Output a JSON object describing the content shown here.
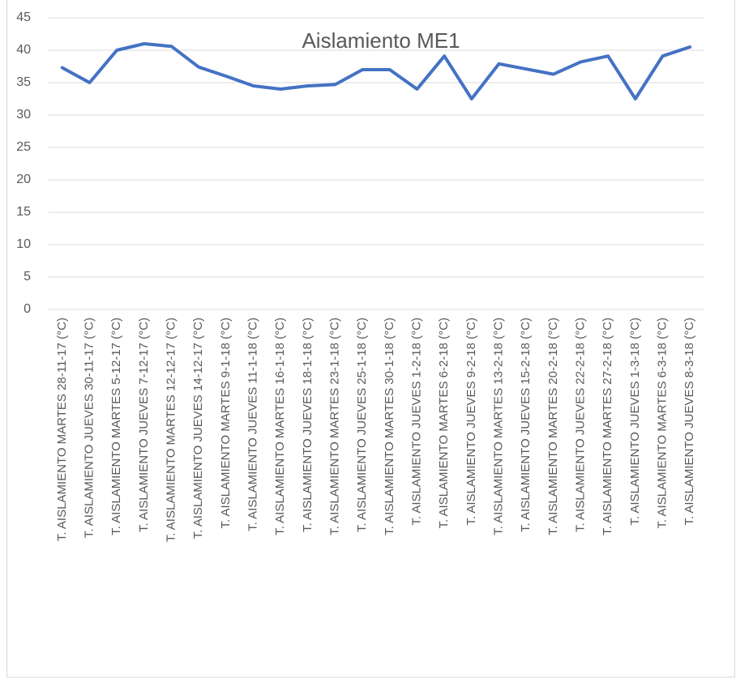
{
  "chart_data": {
    "type": "line",
    "title": "Aislamiento ME1",
    "categories": [
      "T. AISLAMIENTO MARTES 28-11-17 (°C)",
      "T. AISLAMIENTO JUEVES 30-11-17 (°C)",
      "T. AISLAMIENTO MARTES 5-12-17 (°C)",
      "T. AISLAMIENTO JUEVES 7-12-17 (°C)",
      "T. AISLAMIENTO MARTES 12-12-17 (°C)",
      "T. AISLAMIENTO JUEVES 14-12-17 (°C)",
      "T. AISLAMIENTO MARTES 9-1-18 (°C)",
      "T. AISLAMIENTO JUEVES 11-1-18 (°C)",
      "T. AISLAMIENTO MARTES 16-1-18 (°C)",
      "T. AISLAMIENTO JUEVES 18-1-18 (°C)",
      "T. AISLAMIENTO MARTES 23-1-18 (°C)",
      "T. AISLAMIENTO JUEVES 25-1-18 (°C)",
      "T. AISLAMIENTO MARTES 30-1-18 (°C)",
      "T. AISLAMIENTO JUEVES 1-2-18 (°C)",
      "T. AISLAMIENTO MARTES 6-2-18 (°C)",
      "T. AISLAMIENTO JUEVES 9-2-18 (°C)",
      "T. AISLAMIENTO MARTES 13-2-18 (°C)",
      "T. AISLAMIENTO JUEVES 15-2-18 (°C)",
      "T. AISLAMIENTO MARTES 20-2-18 (°C)",
      "T. AISLAMIENTO JUEVES 22-2-18 (°C)",
      "T. AISLAMIENTO MARTES 27-2-18 (°C)",
      "T. AISLAMIENTO JUEVES 1-3-18 (°C)",
      "T. AISLAMIENTO MARTES 6-3-18 (°C)",
      "T. AISLAMIENTO JUEVES 8-3-18 (°C)"
    ],
    "values": [
      37.3,
      35,
      40,
      41,
      40.6,
      37.4,
      36,
      34.5,
      34,
      34.5,
      34.7,
      37,
      37,
      34,
      39.1,
      32.5,
      37.9,
      37.1,
      36.3,
      38.2,
      39.1,
      32.5,
      39.1,
      40.5
    ],
    "color": "#4472c4",
    "ylim": [
      0,
      45
    ],
    "yticks": [
      0,
      5,
      10,
      15,
      20,
      25,
      30,
      35,
      40,
      45
    ],
    "grid": true
  }
}
